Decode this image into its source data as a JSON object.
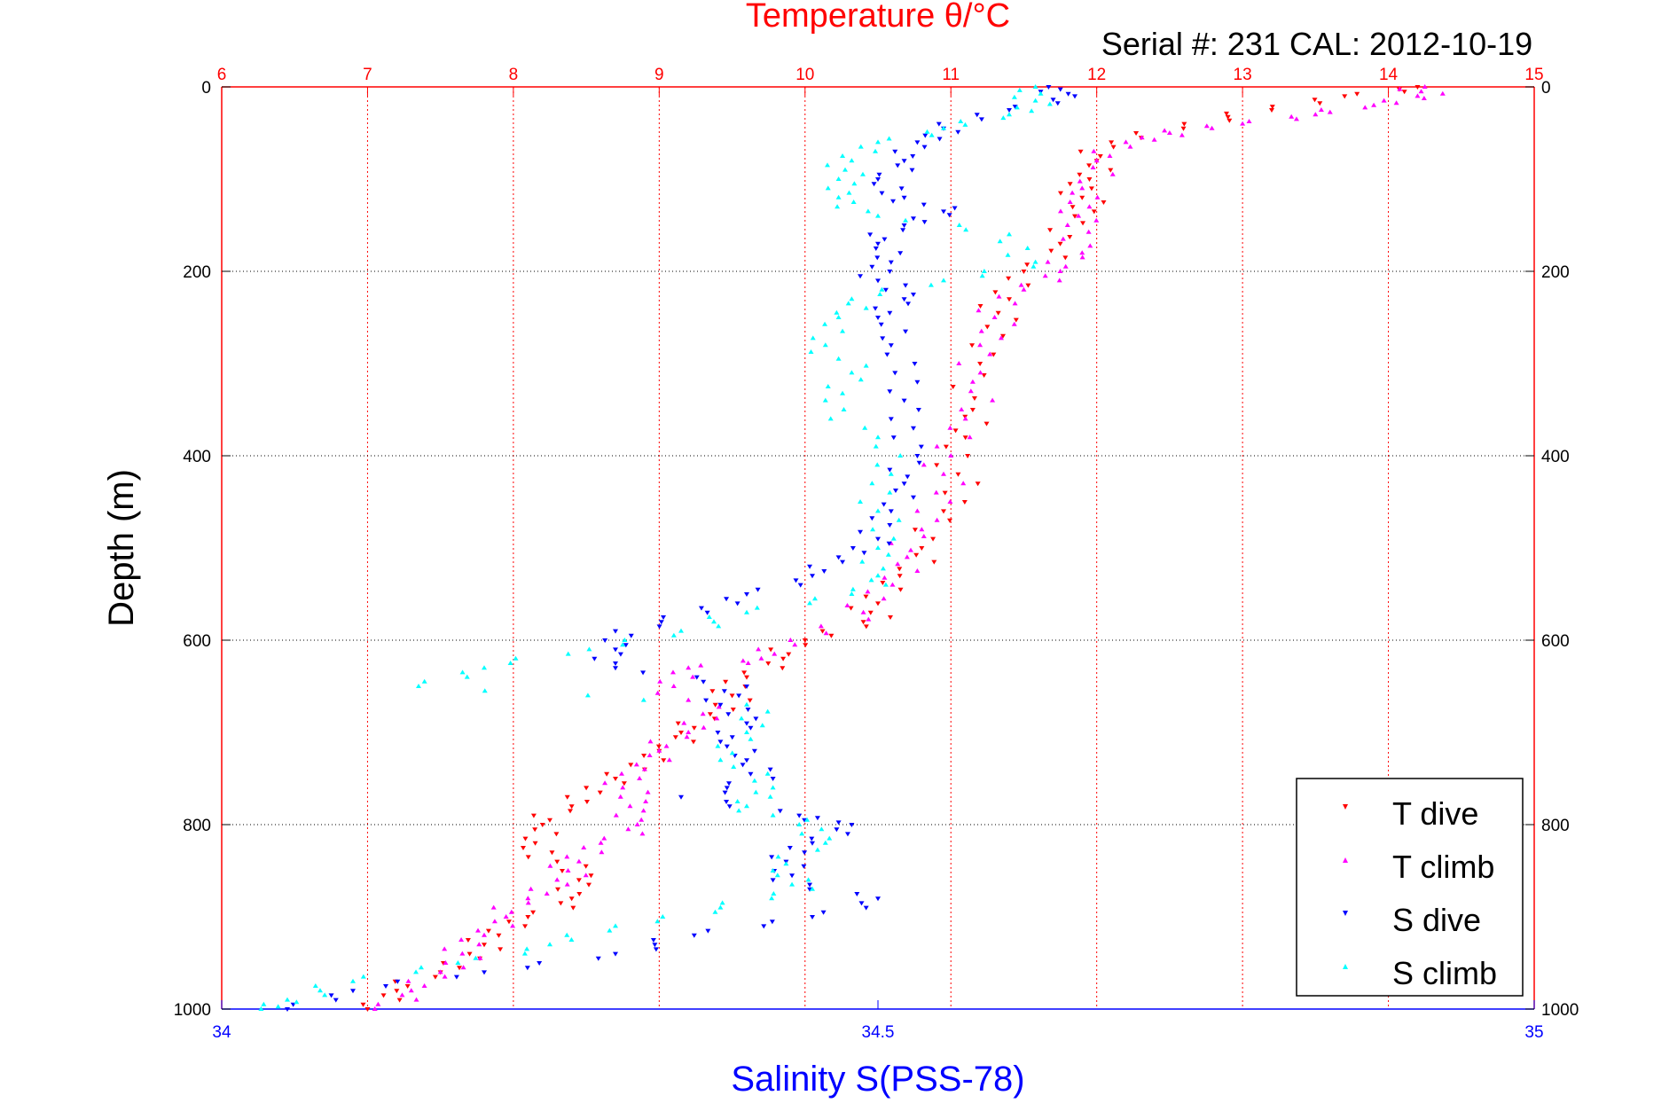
{
  "chart_data": {
    "type": "scatter",
    "title_top": "Temperature θ/°C",
    "subtitle": "Serial #: 231  CAL: 2012-10-19",
    "ylabel": "Depth (m)",
    "xlabel_bottom": "Salinity S(PSS-78)",
    "y_axis": {
      "range": [
        0,
        1000
      ],
      "reversed": true,
      "ticks": [
        0,
        200,
        400,
        600,
        800,
        1000
      ]
    },
    "x_axis_top": {
      "quantity": "Temperature",
      "range": [
        6,
        15
      ],
      "ticks": [
        6,
        7,
        8,
        9,
        10,
        11,
        12,
        13,
        14,
        15
      ]
    },
    "x_axis_bottom": {
      "quantity": "Salinity",
      "range": [
        34,
        35
      ],
      "ticks": [
        "34",
        "34.5",
        "35"
      ]
    },
    "grid": true,
    "legend_position": "bottom-right",
    "colors": {
      "temperature_axis": "#ff0000",
      "salinity_axis": "#0000ff",
      "t_dive": "#ff0000",
      "t_climb": "#ff00ff",
      "s_dive": "#0000ff",
      "s_climb": "#00ffff"
    },
    "series": [
      {
        "name": "T dive",
        "axis": "temperature",
        "marker": "down-triangle",
        "color": "#ff0000",
        "points": [
          [
            14.2,
            0
          ],
          [
            13.7,
            10
          ],
          [
            13.2,
            25
          ],
          [
            12.6,
            40
          ],
          [
            12.1,
            60
          ],
          [
            12.0,
            80
          ],
          [
            11.95,
            100
          ],
          [
            11.9,
            120
          ],
          [
            11.85,
            140
          ],
          [
            11.75,
            170
          ],
          [
            11.5,
            200
          ],
          [
            11.4,
            230
          ],
          [
            11.25,
            260
          ],
          [
            11.2,
            300
          ],
          [
            11.15,
            350
          ],
          [
            11.1,
            380
          ],
          [
            11.05,
            420
          ],
          [
            10.95,
            460
          ],
          [
            10.8,
            500
          ],
          [
            10.65,
            530
          ],
          [
            10.5,
            560
          ],
          [
            10.4,
            580
          ],
          [
            10.0,
            600
          ],
          [
            9.85,
            620
          ],
          [
            9.6,
            640
          ],
          [
            9.5,
            660
          ],
          [
            9.35,
            680
          ],
          [
            9.15,
            700
          ],
          [
            9.0,
            720
          ],
          [
            8.9,
            740
          ],
          [
            8.5,
            760
          ],
          [
            8.4,
            780
          ],
          [
            8.2,
            800
          ],
          [
            8.15,
            820
          ],
          [
            8.3,
            840
          ],
          [
            8.45,
            860
          ],
          [
            8.4,
            880
          ],
          [
            8.1,
            900
          ],
          [
            7.9,
            920
          ],
          [
            7.7,
            940
          ],
          [
            7.5,
            960
          ],
          [
            7.2,
            980
          ],
          [
            7.0,
            1000
          ]
        ]
      },
      {
        "name": "T climb",
        "axis": "temperature",
        "marker": "up-triangle",
        "color": "#ff00ff",
        "points": [
          [
            14.25,
            0
          ],
          [
            14.2,
            10
          ],
          [
            13.9,
            20
          ],
          [
            13.5,
            30
          ],
          [
            13.0,
            40
          ],
          [
            12.5,
            50
          ],
          [
            12.2,
            60
          ],
          [
            12.0,
            80
          ],
          [
            11.9,
            110
          ],
          [
            11.95,
            130
          ],
          [
            11.8,
            150
          ],
          [
            11.9,
            180
          ],
          [
            11.75,
            200
          ],
          [
            11.5,
            220
          ],
          [
            11.3,
            250
          ],
          [
            11.2,
            280
          ],
          [
            11.15,
            320
          ],
          [
            11.1,
            360
          ],
          [
            11.0,
            400
          ],
          [
            10.9,
            440
          ],
          [
            10.8,
            480
          ],
          [
            10.7,
            510
          ],
          [
            10.6,
            540
          ],
          [
            10.4,
            570
          ],
          [
            9.9,
            600
          ],
          [
            9.7,
            620
          ],
          [
            9.2,
            630
          ],
          [
            9.1,
            650
          ],
          [
            9.3,
            680
          ],
          [
            9.2,
            700
          ],
          [
            9.0,
            720
          ],
          [
            8.9,
            740
          ],
          [
            8.75,
            760
          ],
          [
            8.8,
            780
          ],
          [
            8.85,
            800
          ],
          [
            8.6,
            820
          ],
          [
            8.45,
            840
          ],
          [
            8.3,
            860
          ],
          [
            8.1,
            880
          ],
          [
            7.95,
            900
          ],
          [
            7.8,
            920
          ],
          [
            7.65,
            940
          ],
          [
            7.5,
            960
          ],
          [
            7.3,
            980
          ],
          [
            7.05,
            1000
          ]
        ]
      },
      {
        "name": "S dive",
        "axis": "salinity",
        "marker": "down-triangle",
        "color": "#0000ff",
        "points": [
          [
            34.63,
            0
          ],
          [
            34.65,
            10
          ],
          [
            34.6,
            25
          ],
          [
            34.55,
            45
          ],
          [
            34.53,
            60
          ],
          [
            34.52,
            80
          ],
          [
            34.5,
            100
          ],
          [
            34.52,
            120
          ],
          [
            34.55,
            135
          ],
          [
            34.52,
            150
          ],
          [
            34.5,
            170
          ],
          [
            34.51,
            190
          ],
          [
            34.5,
            210
          ],
          [
            34.52,
            230
          ],
          [
            34.5,
            250
          ],
          [
            34.51,
            280
          ],
          [
            34.53,
            320
          ],
          [
            34.51,
            360
          ],
          [
            34.53,
            400
          ],
          [
            34.52,
            430
          ],
          [
            34.51,
            460
          ],
          [
            34.5,
            490
          ],
          [
            34.47,
            510
          ],
          [
            34.45,
            530
          ],
          [
            34.4,
            550
          ],
          [
            34.37,
            570
          ],
          [
            34.3,
            590
          ],
          [
            34.3,
            610
          ],
          [
            34.3,
            630
          ],
          [
            34.4,
            650
          ],
          [
            34.38,
            670
          ],
          [
            34.4,
            690
          ],
          [
            34.38,
            710
          ],
          [
            34.4,
            730
          ],
          [
            34.42,
            750
          ],
          [
            34.35,
            770
          ],
          [
            34.44,
            790
          ],
          [
            34.48,
            800
          ],
          [
            34.45,
            820
          ],
          [
            34.43,
            840
          ],
          [
            34.42,
            860
          ],
          [
            34.5,
            880
          ],
          [
            34.45,
            900
          ],
          [
            34.36,
            920
          ],
          [
            34.3,
            940
          ],
          [
            34.2,
            960
          ],
          [
            34.1,
            980
          ],
          [
            34.05,
            1000
          ]
        ]
      },
      {
        "name": "S climb",
        "axis": "salinity",
        "marker": "up-triangle",
        "color": "#00ffff",
        "points": [
          [
            34.62,
            0
          ],
          [
            34.62,
            15
          ],
          [
            34.6,
            30
          ],
          [
            34.55,
            45
          ],
          [
            34.5,
            60
          ],
          [
            34.48,
            80
          ],
          [
            34.47,
            100
          ],
          [
            34.47,
            120
          ],
          [
            34.5,
            140
          ],
          [
            34.6,
            160
          ],
          [
            34.62,
            190
          ],
          [
            34.55,
            210
          ],
          [
            34.48,
            230
          ],
          [
            34.47,
            250
          ],
          [
            34.46,
            280
          ],
          [
            34.48,
            310
          ],
          [
            34.46,
            340
          ],
          [
            34.5,
            380
          ],
          [
            34.51,
            420
          ],
          [
            34.5,
            460
          ],
          [
            34.5,
            500
          ],
          [
            34.5,
            530
          ],
          [
            34.48,
            550
          ],
          [
            34.4,
            570
          ],
          [
            34.35,
            590
          ],
          [
            34.28,
            610
          ],
          [
            34.2,
            630
          ],
          [
            34.15,
            650
          ],
          [
            34.4,
            670
          ],
          [
            34.4,
            700
          ],
          [
            34.38,
            730
          ],
          [
            34.42,
            760
          ],
          [
            34.4,
            780
          ],
          [
            34.44,
            800
          ],
          [
            34.46,
            820
          ],
          [
            34.42,
            850
          ],
          [
            34.45,
            870
          ],
          [
            34.38,
            890
          ],
          [
            34.3,
            910
          ],
          [
            34.25,
            930
          ],
          [
            34.18,
            950
          ],
          [
            34.1,
            970
          ],
          [
            34.05,
            990
          ],
          [
            34.03,
            1000
          ]
        ]
      }
    ]
  }
}
